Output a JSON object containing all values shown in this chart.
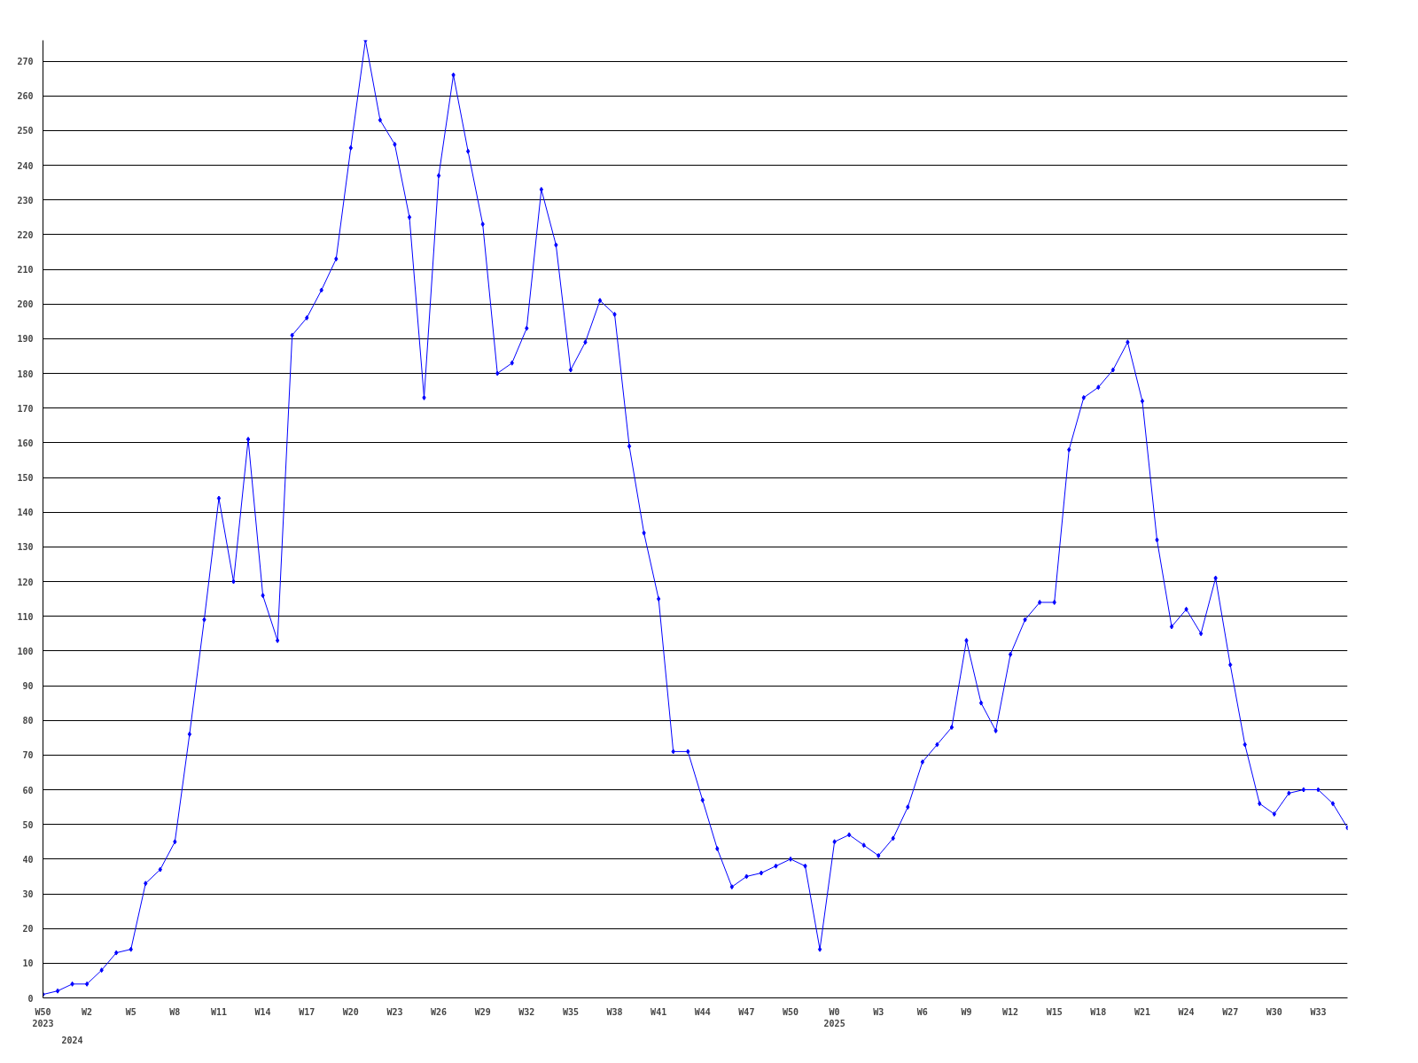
{
  "chart_data": {
    "type": "line",
    "categories": [
      "W50\n2023",
      null,
      null,
      "W2",
      null,
      null,
      "W5",
      null,
      null,
      "W8",
      null,
      null,
      "W11",
      null,
      null,
      "W14",
      null,
      null,
      "W17",
      null,
      null,
      "W20",
      null,
      null,
      "W23",
      null,
      null,
      "W26",
      null,
      null,
      "W29",
      null,
      null,
      "W32",
      null,
      null,
      "W35",
      null,
      null,
      "W38",
      null,
      null,
      "W41",
      null,
      null,
      "W44",
      null,
      null,
      "W47",
      null,
      null,
      "W50",
      null,
      null,
      "W0\n2025",
      null,
      null,
      "W3",
      null,
      null,
      "W6",
      null,
      null,
      "W9",
      null,
      null,
      "W12",
      null,
      null,
      "W15",
      null,
      null,
      "W18",
      null,
      null,
      "W21",
      null,
      null,
      "W24",
      null,
      null,
      "W27",
      null,
      null,
      "W30",
      null,
      null,
      "W33",
      null,
      null
    ],
    "series": [
      {
        "color": "#0000ff",
        "values": [
          1,
          2,
          4,
          4,
          8,
          13,
          14,
          33,
          37,
          45,
          76,
          109,
          144,
          120,
          161,
          116,
          103,
          191,
          196,
          204,
          213,
          245,
          276,
          253,
          246,
          225,
          173,
          237,
          266,
          244,
          223,
          180,
          183,
          193,
          233,
          217,
          181,
          189,
          201,
          197,
          159,
          134,
          115,
          71,
          71,
          57,
          43,
          32,
          35,
          36,
          38,
          40,
          38,
          14,
          45,
          47,
          44,
          41,
          46,
          55,
          68,
          73,
          78,
          103,
          85,
          77,
          99,
          109,
          114,
          114,
          158,
          173,
          176,
          181,
          189,
          172,
          132,
          107,
          112,
          105,
          121,
          96,
          73,
          56,
          53,
          59,
          60,
          60,
          56,
          49
        ]
      }
    ],
    "annotations": [
      "2024"
    ],
    "ylim": [
      0,
      276
    ],
    "yticks": [
      0,
      10,
      20,
      30,
      40,
      50,
      60,
      70,
      80,
      90,
      100,
      110,
      120,
      130,
      140,
      150,
      160,
      170,
      180,
      190,
      200,
      210,
      220,
      230,
      240,
      250,
      260,
      270
    ],
    "grid": "y",
    "marker": "diamond",
    "line_style": "solid"
  }
}
